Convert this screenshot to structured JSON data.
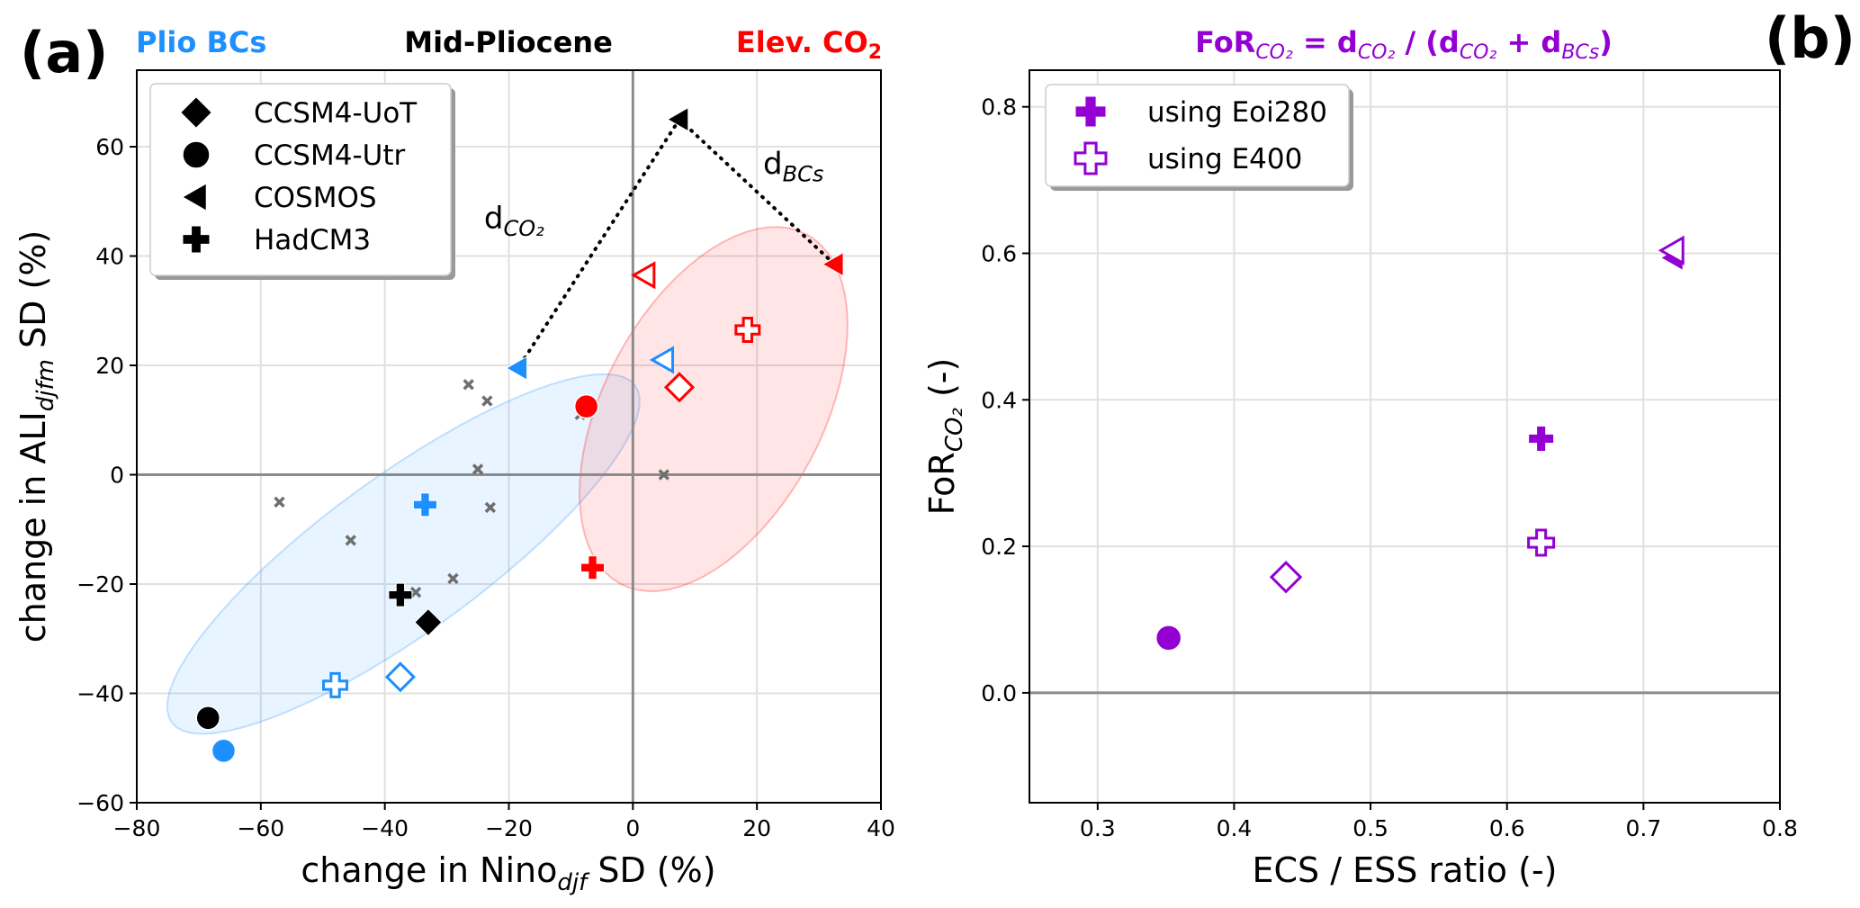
{
  "chart_data": [
    {
      "panel": "(a)",
      "type": "scatter",
      "titles": {
        "left": "Plio BCs",
        "center": "Mid-Pliocene",
        "right": "Elev. CO",
        "right_sub": "2"
      },
      "title_colors": {
        "left": "#1e8fff",
        "center": "#000000",
        "right": "#ff0000"
      },
      "xlabel": "change in Nino",
      "xlabel_sub": "djf",
      "xlabel_suffix": " SD (%)",
      "ylabel": "change in ALI",
      "ylabel_sub": "djfm",
      "ylabel_suffix": " SD (%)",
      "xlim": [
        -80,
        40
      ],
      "ylim": [
        -60,
        74
      ],
      "xticks": [
        -80,
        -60,
        -40,
        -20,
        0,
        20,
        40
      ],
      "xtick_labels": [
        "−80",
        "−60",
        "−40",
        "−20",
        "0",
        "20",
        "40"
      ],
      "yticks": [
        -60,
        -40,
        -20,
        0,
        20,
        40,
        60
      ],
      "ytick_labels": [
        "−60",
        "−40",
        "−20",
        "0",
        "20",
        "40",
        "60"
      ],
      "grid": true,
      "zero_lines": true,
      "legend": {
        "placement": "top-left",
        "entries": [
          {
            "label": "CCSM4-UoT",
            "marker": "diamond"
          },
          {
            "label": "CCSM4-Utr",
            "marker": "circle"
          },
          {
            "label": "COSMOS",
            "marker": "triangle-left"
          },
          {
            "label": "HadCM3",
            "marker": "plus"
          }
        ]
      },
      "colors": {
        "mid_pliocene": "#000000",
        "plio_bcs": "#1e8fff",
        "elev_co2": "#ff0000",
        "other": "#6e6e6e"
      },
      "series": [
        {
          "name": "Mid-Pliocene",
          "color": "#000000",
          "points": [
            {
              "model": "CCSM4-UoT",
              "marker": "diamond",
              "filled": true,
              "x": -33,
              "y": -27
            },
            {
              "model": "CCSM4-Utr",
              "marker": "circle",
              "filled": true,
              "x": -68.5,
              "y": -44.5
            },
            {
              "model": "COSMOS",
              "marker": "triangle-left",
              "filled": true,
              "x": 7.5,
              "y": 65
            },
            {
              "model": "HadCM3",
              "marker": "plus",
              "filled": true,
              "x": -37.5,
              "y": -22
            }
          ]
        },
        {
          "name": "Plio BCs (Eoi280)",
          "color": "#1e8fff",
          "points": [
            {
              "model": "CCSM4-Utr",
              "marker": "circle",
              "filled": true,
              "x": -66,
              "y": -50.5
            },
            {
              "model": "COSMOS",
              "marker": "triangle-left",
              "filled": true,
              "x": -18.5,
              "y": 19.5
            },
            {
              "model": "HadCM3",
              "marker": "plus",
              "filled": true,
              "x": -33.5,
              "y": -5.5
            }
          ]
        },
        {
          "name": "Plio BCs (E400)",
          "color": "#1e8fff",
          "points": [
            {
              "model": "CCSM4-UoT",
              "marker": "diamond",
              "filled": false,
              "x": -37.5,
              "y": -37
            },
            {
              "model": "COSMOS",
              "marker": "triangle-left",
              "filled": false,
              "x": 5,
              "y": 21
            },
            {
              "model": "HadCM3",
              "marker": "plus",
              "filled": false,
              "x": -48,
              "y": -38.5
            }
          ]
        },
        {
          "name": "Elev. CO2 (Eoi280)",
          "color": "#ff0000",
          "points": [
            {
              "model": "CCSM4-Utr",
              "marker": "circle",
              "filled": true,
              "x": -7.5,
              "y": 12.5
            },
            {
              "model": "COSMOS",
              "marker": "triangle-left",
              "filled": true,
              "x": 32.5,
              "y": 38.5
            },
            {
              "model": "HadCM3",
              "marker": "plus",
              "filled": true,
              "x": -6.5,
              "y": -17
            }
          ]
        },
        {
          "name": "Elev. CO2 (E400)",
          "color": "#ff0000",
          "points": [
            {
              "model": "CCSM4-UoT",
              "marker": "diamond",
              "filled": false,
              "x": 7.5,
              "y": 16
            },
            {
              "model": "COSMOS",
              "marker": "triangle-left",
              "filled": false,
              "x": 2,
              "y": 36.5
            },
            {
              "model": "HadCM3",
              "marker": "plus",
              "filled": false,
              "x": 18.5,
              "y": 26.5
            }
          ]
        },
        {
          "name": "other (grey x)",
          "color": "#6e6e6e",
          "marker": "x",
          "points": [
            {
              "x": -57,
              "y": -5
            },
            {
              "x": -45.5,
              "y": -12
            },
            {
              "x": -26.5,
              "y": 16.5
            },
            {
              "x": -23.5,
              "y": 13.5
            },
            {
              "x": -25,
              "y": 1
            },
            {
              "x": -23,
              "y": -6
            },
            {
              "x": -29,
              "y": -19
            },
            {
              "x": -35,
              "y": -21.5
            },
            {
              "x": -8.5,
              "y": 11
            },
            {
              "x": 5,
              "y": 0
            }
          ]
        }
      ],
      "ellipses": [
        {
          "name": "Plio BCs spread",
          "color": "#1e8fff",
          "opacity": 0.1,
          "center": [
            -37,
            -14.5
          ],
          "semi_major": 55,
          "semi_minor": 15,
          "angle_deg": 36
        },
        {
          "name": "Elev. CO2 spread",
          "color": "#ff0000",
          "opacity": 0.1,
          "center": [
            13,
            12
          ],
          "semi_major": 38,
          "semi_minor": 21,
          "angle_deg": 62
        }
      ],
      "annotations": [
        {
          "text": "d",
          "sub": "CO2",
          "x": -24,
          "y": 45,
          "segment": {
            "from": [
              7.5,
              65
            ],
            "to": [
              -18.5,
              19.5
            ]
          }
        },
        {
          "text": "d",
          "sub": "BCs",
          "x": 21,
          "y": 55,
          "segment": {
            "from": [
              7.5,
              65
            ],
            "to": [
              32.5,
              38.5
            ]
          }
        }
      ]
    },
    {
      "panel": "(b)",
      "type": "scatter",
      "title": "FoR",
      "title_color": "#9400d3",
      "title_parts": [
        "FoR",
        "CO₂",
        " = d",
        "CO₂",
        " / (d",
        "CO₂",
        " + d",
        "BCs",
        ")"
      ],
      "xlabel": "ECS / ESS ratio (-)",
      "ylabel": "FoR",
      "ylabel_sub": "CO₂",
      "ylabel_suffix": " (-)",
      "xlim": [
        0.25,
        0.8
      ],
      "ylim": [
        -0.15,
        0.85
      ],
      "xticks": [
        0.3,
        0.4,
        0.5,
        0.6,
        0.7,
        0.8
      ],
      "xtick_labels": [
        "0.3",
        "0.4",
        "0.5",
        "0.6",
        "0.7",
        "0.8"
      ],
      "yticks": [
        0.0,
        0.2,
        0.4,
        0.6,
        0.8
      ],
      "ytick_labels": [
        "0.0",
        "0.2",
        "0.4",
        "0.6",
        "0.8"
      ],
      "grid": true,
      "zero_line": true,
      "legend": {
        "placement": "top-left",
        "entries": [
          {
            "label": "using Eoi280",
            "marker": "plus",
            "filled": true
          },
          {
            "label": "using E400",
            "marker": "plus",
            "filled": false
          }
        ]
      },
      "color": "#9400d3",
      "points": [
        {
          "model": "CCSM4-Utr",
          "marker": "circle",
          "filled": true,
          "x": 0.352,
          "y": 0.075
        },
        {
          "model": "CCSM4-UoT",
          "marker": "diamond",
          "filled": false,
          "x": 0.438,
          "y": 0.158
        },
        {
          "model": "HadCM3",
          "marker": "plus",
          "filled": true,
          "x": 0.625,
          "y": 0.347
        },
        {
          "model": "HadCM3",
          "marker": "plus",
          "filled": false,
          "x": 0.625,
          "y": 0.205
        },
        {
          "model": "COSMOS",
          "marker": "triangle-left",
          "filled": true,
          "x": 0.722,
          "y": 0.594
        },
        {
          "model": "COSMOS",
          "marker": "triangle-left",
          "filled": false,
          "x": 0.722,
          "y": 0.604
        }
      ]
    }
  ]
}
